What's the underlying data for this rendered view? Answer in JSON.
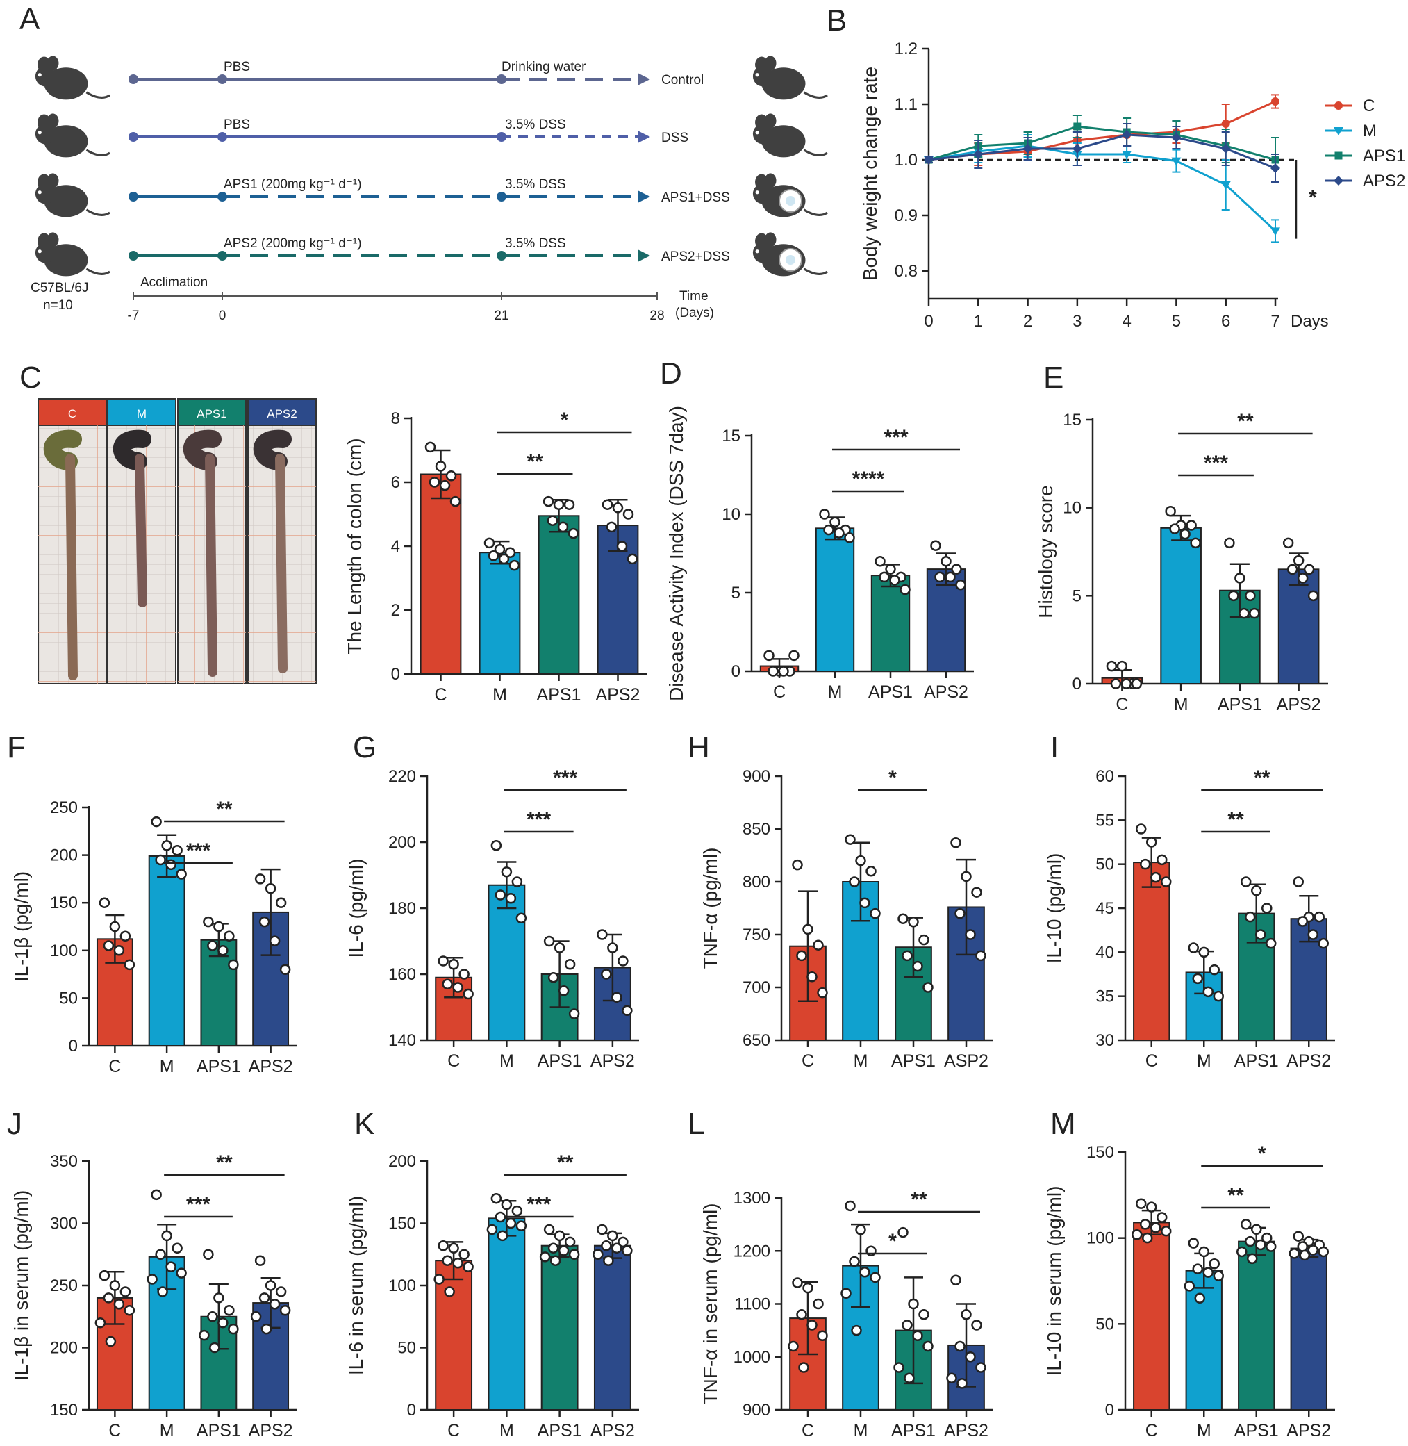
{
  "colors": {
    "C": "#d9442e",
    "M": "#10a1cf",
    "APS1": "#12806d",
    "APS2": "#2c4a8a"
  },
  "panelA": {
    "label": "A",
    "rows": [
      {
        "treat": "PBS",
        "stage": "Drinking water",
        "end": "Control",
        "color": "#5c6690",
        "style": "solid-then-dash"
      },
      {
        "treat": "PBS",
        "stage": "3.5% DSS",
        "end": "DSS",
        "color": "#4f5fa8",
        "style": "solid-then-dash"
      },
      {
        "treat": "APS1  (200mg kg⁻¹ d⁻¹)",
        "stage": "3.5% DSS",
        "end": "APS1+DSS",
        "color": "#1d6094",
        "style": "dash"
      },
      {
        "treat": "APS2 (200mg kg⁻¹ d⁻¹)",
        "stage": "3.5% DSS",
        "end": "APS2+DSS",
        "color": "#1a6a68",
        "style": "dash"
      }
    ],
    "strain": "C57BL/6J",
    "n": "n=10",
    "acclimation": "Acclimation",
    "timeline_ticks": [
      "-7",
      "0",
      "21",
      "28"
    ],
    "time_label": "Time",
    "time_unit": "(Days)"
  },
  "chart_data": [
    {
      "id": "B",
      "type": "line",
      "title": "",
      "ylabel": "Body weight change rate",
      "xlabel": "Days",
      "x": [
        0,
        1,
        2,
        3,
        4,
        5,
        6,
        7
      ],
      "ylim": [
        0.75,
        1.2
      ],
      "yticks": [
        0.8,
        0.9,
        1.0,
        1.1,
        1.2
      ],
      "reference_line": 1.0,
      "legend_position": "right",
      "series": [
        {
          "name": "C",
          "values": [
            1.0,
            1.01,
            1.015,
            1.035,
            1.045,
            1.05,
            1.065,
            1.105
          ],
          "err": [
            0.005,
            0.02,
            0.015,
            0.02,
            0.02,
            0.02,
            0.035,
            0.012
          ]
        },
        {
          "name": "M",
          "values": [
            1.0,
            1.015,
            1.025,
            1.01,
            1.01,
            0.998,
            0.955,
            0.872
          ],
          "err": [
            0.005,
            0.02,
            0.02,
            0.02,
            0.015,
            0.02,
            0.045,
            0.02
          ]
        },
        {
          "name": "APS1",
          "values": [
            1.0,
            1.025,
            1.03,
            1.06,
            1.05,
            1.045,
            1.025,
            1.0
          ],
          "err": [
            0.005,
            0.02,
            0.02,
            0.02,
            0.025,
            0.025,
            0.03,
            0.04
          ]
        },
        {
          "name": "APS2",
          "values": [
            1.0,
            1.01,
            1.02,
            1.02,
            1.045,
            1.04,
            1.02,
            0.985
          ],
          "err": [
            0.005,
            0.025,
            0.02,
            0.03,
            0.02,
            0.02,
            0.03,
            0.025
          ]
        }
      ],
      "significance": "*"
    },
    {
      "id": "C",
      "type": "bar",
      "ylabel": "The Length of colon (cm)",
      "categories": [
        "C",
        "M",
        "APS1",
        "APS2"
      ],
      "ylim": [
        0,
        8
      ],
      "yticks": [
        0,
        2,
        4,
        6,
        8
      ],
      "values": [
        6.25,
        3.8,
        4.95,
        4.65
      ],
      "err": [
        0.75,
        0.35,
        0.5,
        0.8
      ],
      "points": [
        [
          7.1,
          6.5,
          6.2,
          6.0,
          5.9,
          5.4
        ],
        [
          4.1,
          3.9,
          3.8,
          3.7,
          3.6,
          3.4
        ],
        [
          5.4,
          5.3,
          5.3,
          4.8,
          4.6,
          4.4
        ],
        [
          5.3,
          5.2,
          5.0,
          4.6,
          4.0,
          3.6
        ]
      ],
      "sig": [
        {
          "from": 1,
          "to": 2,
          "label": "**"
        },
        {
          "from": 1,
          "to": 3,
          "label": "*"
        }
      ]
    },
    {
      "id": "D",
      "type": "bar",
      "ylabel": "Disease Activity Index (DSS 7day)",
      "categories": [
        "C",
        "M",
        "APS1",
        "APS2"
      ],
      "ylim": [
        0,
        15
      ],
      "yticks": [
        0,
        5,
        10,
        15
      ],
      "values": [
        0.33,
        9.1,
        6.1,
        6.5
      ],
      "err": [
        0.45,
        0.7,
        0.7,
        1.0
      ],
      "points": [
        [
          1.0,
          0.0,
          0.0,
          0.0,
          0.0,
          1.0
        ],
        [
          10.0,
          9.5,
          9.0,
          9.0,
          8.8,
          8.5
        ],
        [
          7.0,
          6.5,
          6.0,
          6.0,
          5.8,
          5.2
        ],
        [
          8.0,
          7.0,
          6.5,
          6.0,
          6.0,
          5.5
        ]
      ],
      "sig": [
        {
          "from": 1,
          "to": 2,
          "label": "****"
        },
        {
          "from": 1,
          "to": 3,
          "label": "***"
        }
      ]
    },
    {
      "id": "E",
      "type": "bar",
      "ylabel": "Histology score",
      "categories": [
        "C",
        "M",
        "APS1",
        "APS2"
      ],
      "ylim": [
        0,
        15
      ],
      "yticks": [
        0,
        5,
        10,
        15
      ],
      "values": [
        0.33,
        8.85,
        5.3,
        6.5
      ],
      "err": [
        0.45,
        0.7,
        1.5,
        0.9
      ],
      "points": [
        [
          1.0,
          1.0,
          0.0,
          0.0,
          0.0,
          0.0
        ],
        [
          9.8,
          9.0,
          9.0,
          8.8,
          8.5,
          8.0
        ],
        [
          8.0,
          6.0,
          5.0,
          5.0,
          4.0,
          4.0
        ],
        [
          8.0,
          7.0,
          6.5,
          6.5,
          6.0,
          5.0
        ]
      ],
      "sig": [
        {
          "from": 1,
          "to": 2,
          "label": "***"
        },
        {
          "from": 1,
          "to": 3,
          "label": "**"
        }
      ]
    },
    {
      "id": "F",
      "type": "bar",
      "ylabel": "IL-1β  (pg/ml)",
      "categories": [
        "C",
        "M",
        "APS1",
        "APS2"
      ],
      "ylim": [
        0,
        250
      ],
      "yticks": [
        0,
        50,
        100,
        150,
        200,
        250
      ],
      "values": [
        112,
        199,
        111,
        140
      ],
      "err": [
        25,
        22,
        17,
        45
      ],
      "points": [
        [
          150,
          125,
          115,
          105,
          100,
          85
        ],
        [
          235,
          210,
          205,
          195,
          190,
          180
        ],
        [
          130,
          125,
          115,
          105,
          100,
          85
        ],
        [
          175,
          165,
          150,
          130,
          110,
          80
        ]
      ],
      "sig": [
        {
          "from": 1,
          "to": 2,
          "label": "***"
        },
        {
          "from": 1,
          "to": 3,
          "label": "**"
        }
      ]
    },
    {
      "id": "G",
      "type": "bar",
      "ylabel": "IL-6 (pg/ml)",
      "categories": [
        "C",
        "M",
        "APS1",
        "APS2"
      ],
      "ylim": [
        140,
        220
      ],
      "yticks": [
        140,
        160,
        180,
        200,
        220
      ],
      "values": [
        159,
        187,
        160,
        162
      ],
      "err": [
        6,
        7,
        10,
        10
      ],
      "points": [
        [
          164,
          163,
          160,
          157,
          156,
          154
        ],
        [
          199,
          191,
          188,
          184,
          183,
          177
        ],
        [
          170,
          168,
          163,
          159,
          155,
          148
        ],
        [
          172,
          168,
          164,
          160,
          153,
          149
        ]
      ],
      "sig": [
        {
          "from": 1,
          "to": 2,
          "label": "***"
        },
        {
          "from": 1,
          "to": 3,
          "label": "***"
        }
      ]
    },
    {
      "id": "H",
      "type": "bar",
      "ylabel": "TNF-α (pg/ml)",
      "categories": [
        "C",
        "M",
        "APS1",
        "ASP2"
      ],
      "ylim": [
        650,
        900
      ],
      "yticks": [
        650,
        700,
        750,
        800,
        850,
        900
      ],
      "values": [
        739,
        800,
        738,
        776
      ],
      "err": [
        52,
        37,
        28,
        45
      ],
      "points": [
        [
          816,
          755,
          740,
          730,
          710,
          695
        ],
        [
          840,
          820,
          810,
          800,
          780,
          770
        ],
        [
          765,
          762,
          745,
          730,
          720,
          700
        ],
        [
          837,
          805,
          790,
          770,
          750,
          730
        ]
      ],
      "sig": [
        {
          "from": 1,
          "to": 2,
          "label": "*"
        }
      ]
    },
    {
      "id": "I",
      "type": "bar",
      "ylabel": "IL-10  (pg/ml)",
      "categories": [
        "C",
        "M",
        "APS1",
        "APS2"
      ],
      "ylim": [
        30,
        60
      ],
      "yticks": [
        30,
        35,
        40,
        45,
        50,
        55,
        60
      ],
      "values": [
        50.2,
        37.7,
        44.4,
        43.8
      ],
      "err": [
        2.8,
        2.4,
        3.3,
        2.6
      ],
      "points": [
        [
          54,
          52.5,
          50.5,
          50,
          48.5,
          48
        ],
        [
          40.5,
          40,
          38,
          37,
          35.5,
          35
        ],
        [
          48,
          47,
          45,
          44,
          42,
          41
        ],
        [
          48,
          44,
          44,
          43.5,
          42,
          41
        ]
      ],
      "sig": [
        {
          "from": 1,
          "to": 2,
          "label": "**"
        },
        {
          "from": 1,
          "to": 3,
          "label": "**"
        }
      ]
    },
    {
      "id": "J",
      "type": "bar",
      "ylabel": "IL-1β in serum (pg/ml)",
      "categories": [
        "C",
        "M",
        "APS1",
        "APS2"
      ],
      "ylim": [
        150,
        350
      ],
      "yticks": [
        150,
        200,
        250,
        300,
        350
      ],
      "values": [
        240,
        273,
        225,
        236
      ],
      "err": [
        21,
        26,
        26,
        20
      ],
      "points": [
        [
          258,
          250,
          245,
          240,
          235,
          230,
          220,
          205
        ],
        [
          323,
          290,
          280,
          275,
          265,
          260,
          255,
          245
        ],
        [
          275,
          240,
          230,
          225,
          220,
          215,
          210,
          200
        ],
        [
          270,
          250,
          245,
          240,
          235,
          230,
          225,
          215
        ]
      ],
      "sig": [
        {
          "from": 1,
          "to": 2,
          "label": "***"
        },
        {
          "from": 1,
          "to": 3,
          "label": "**"
        }
      ]
    },
    {
      "id": "K",
      "type": "bar",
      "ylabel": "IL-6 in serum (pg/ml)",
      "categories": [
        "C",
        "M",
        "APS1",
        "APS2"
      ],
      "ylim": [
        0,
        200
      ],
      "yticks": [
        0,
        50,
        100,
        150,
        200
      ],
      "values": [
        120,
        154,
        132,
        132
      ],
      "err": [
        15,
        14,
        9,
        10
      ],
      "points": [
        [
          132,
          130,
          125,
          120,
          118,
          115,
          105,
          95
        ],
        [
          170,
          165,
          160,
          155,
          150,
          148,
          145,
          140
        ],
        [
          145,
          140,
          135,
          130,
          128,
          125,
          123,
          120
        ],
        [
          145,
          140,
          135,
          132,
          130,
          128,
          125,
          120
        ]
      ],
      "sig": [
        {
          "from": 1,
          "to": 2,
          "label": "***"
        },
        {
          "from": 1,
          "to": 3,
          "label": "**"
        }
      ]
    },
    {
      "id": "L",
      "type": "bar",
      "ylabel": "TNF-α in serum (pg/ml)",
      "categories": [
        "C",
        "M",
        "APS1",
        "APS2"
      ],
      "ylim": [
        900,
        1300
      ],
      "yticks": [
        900,
        1000,
        1100,
        1200,
        1300
      ],
      "values": [
        1073,
        1172,
        1050,
        1022
      ],
      "err": [
        68,
        78,
        100,
        78
      ],
      "points": [
        [
          1140,
          1130,
          1100,
          1080,
          1060,
          1040,
          1020,
          980
        ],
        [
          1285,
          1240,
          1200,
          1180,
          1160,
          1150,
          1120,
          1050
        ],
        [
          1235,
          1100,
          1080,
          1060,
          1040,
          1020,
          980,
          960
        ],
        [
          1145,
          1080,
          1060,
          1020,
          1000,
          980,
          960,
          950
        ]
      ],
      "sig": [
        {
          "from": 1,
          "to": 2,
          "label": "*"
        },
        {
          "from": 1,
          "to": 3,
          "label": "**"
        }
      ]
    },
    {
      "id": "M",
      "type": "bar",
      "ylabel": "IL-10 in serum (pg/ml)",
      "categories": [
        "C",
        "M",
        "APS1",
        "APS2"
      ],
      "ylim": [
        0,
        150
      ],
      "yticks": [
        0,
        50,
        100,
        150
      ],
      "values": [
        109,
        81,
        98,
        94
      ],
      "err": [
        7,
        10,
        8,
        5
      ],
      "points": [
        [
          120,
          118,
          112,
          108,
          106,
          104,
          102,
          100
        ],
        [
          97,
          92,
          85,
          82,
          80,
          78,
          72,
          65
        ],
        [
          108,
          105,
          100,
          98,
          96,
          95,
          92,
          88
        ],
        [
          101,
          98,
          96,
          95,
          93,
          92,
          91,
          90
        ]
      ],
      "sig": [
        {
          "from": 1,
          "to": 2,
          "label": "**"
        },
        {
          "from": 1,
          "to": 3,
          "label": "*"
        }
      ]
    }
  ],
  "photo": {
    "labels": [
      "C",
      "M",
      "APS1",
      "APS2"
    ]
  }
}
